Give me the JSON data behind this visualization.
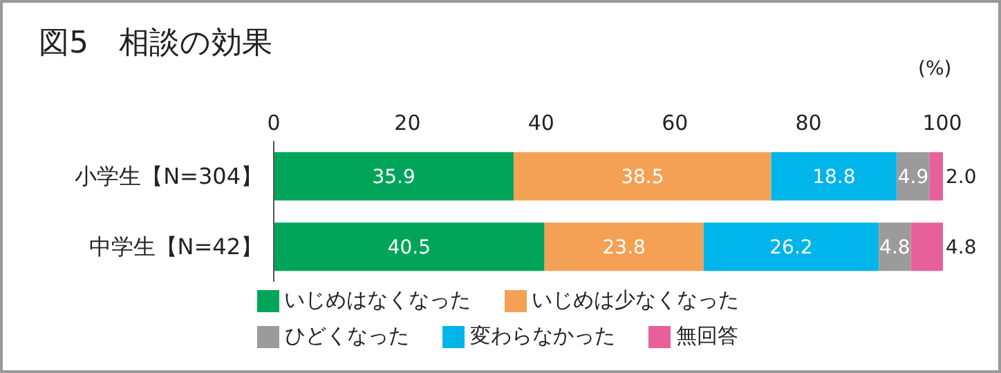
{
  "chart_data": {
    "type": "bar",
    "orientation": "horizontal",
    "stacked": true,
    "title": "図5　相談の効果",
    "xlabel": "(%)",
    "categories": [
      "小学生【N=304】",
      "中学生【N=42】"
    ],
    "series": [
      {
        "name": "いじめはなくなった",
        "color": "#00a55a",
        "values": [
          35.9,
          40.5
        ],
        "value_labels": [
          "35.9",
          "40.5"
        ]
      },
      {
        "name": "いじめは少なくなった",
        "color": "#f4a155",
        "values": [
          38.5,
          23.8
        ],
        "value_labels": [
          "38.5",
          "23.8"
        ]
      },
      {
        "name": "変わらなかった",
        "color": "#00b5ea",
        "values": [
          18.8,
          26.2
        ],
        "value_labels": [
          "18.8",
          "26.2"
        ]
      },
      {
        "name": "ひどくなった",
        "color": "#9b9b9b",
        "values": [
          4.9,
          4.8
        ],
        "value_labels": [
          "4.9",
          "4.8"
        ]
      },
      {
        "name": "無回答",
        "color": "#e8609b",
        "values": [
          2.0,
          4.8
        ],
        "value_labels": [
          "2.0",
          "4.8"
        ]
      }
    ],
    "xlim": [
      0,
      100.1
    ],
    "xticks": [
      0,
      20,
      40,
      60,
      80,
      100
    ],
    "legend": "bottom"
  }
}
